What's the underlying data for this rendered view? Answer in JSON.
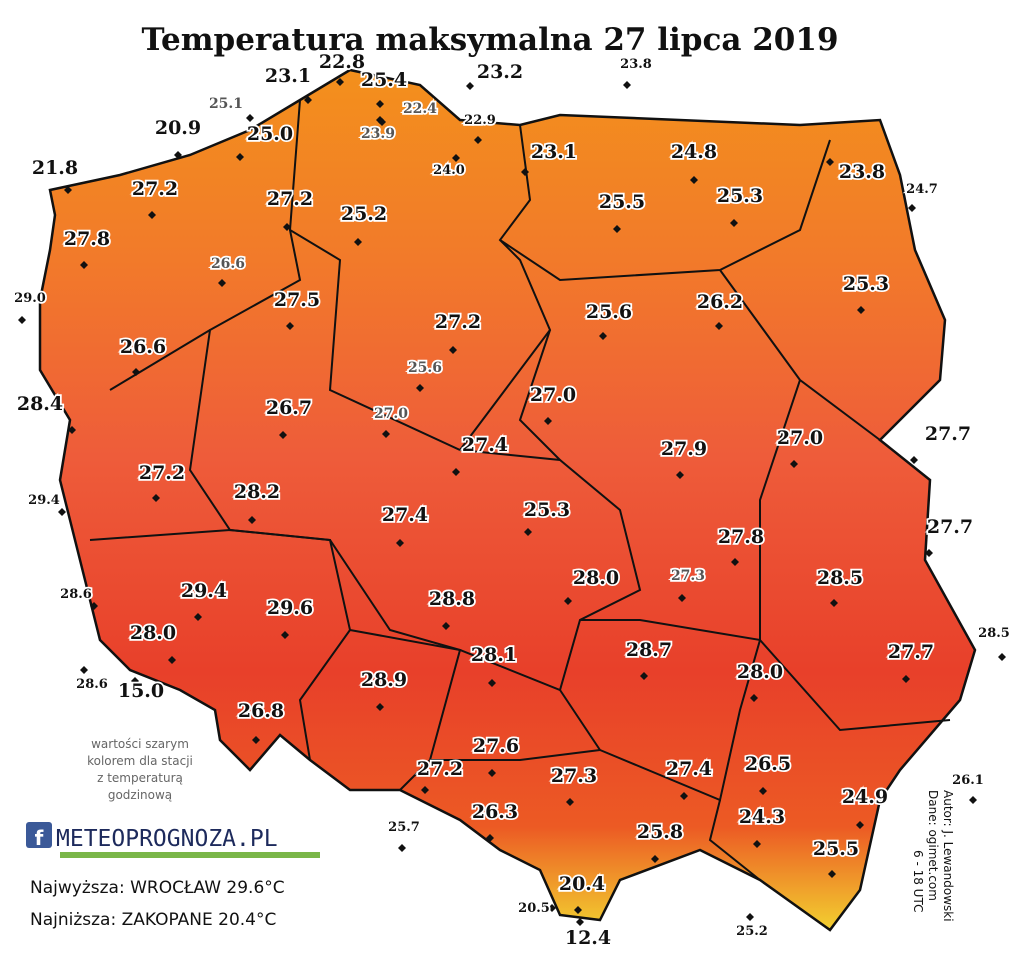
{
  "title": "Temperatura maksymalna 27 lipca 2019",
  "stations": [
    "23.8",
    "23.1",
    "22.8",
    "25.4",
    "23.2",
    "25.1",
    "22.4",
    "22.9",
    "23.9",
    "20.9",
    "25.0",
    "24.0",
    "23.1",
    "24.8",
    "23.8",
    "24.7",
    "21.8",
    "27.2",
    "27.2",
    "25.2",
    "25.5",
    "25.3",
    "27.8",
    "26.6",
    "29.0",
    "27.5",
    "27.2",
    "25.6",
    "26.2",
    "25.3",
    "26.6",
    "25.6",
    "28.4",
    "26.7",
    "27.0",
    "27.0",
    "27.9",
    "27.0",
    "27.7",
    "27.4",
    "27.2",
    "29.4",
    "28.2",
    "27.4",
    "25.3",
    "27.7",
    "27.8",
    "28.0",
    "27.3",
    "28.5",
    "28.6",
    "29.4",
    "29.6",
    "28.8",
    "28.0",
    "28.5",
    "28.7",
    "27.7",
    "28.1",
    "28.6",
    "15.0",
    "28.0",
    "28.9",
    "26.8",
    "27.6",
    "27.2",
    "27.3",
    "27.4",
    "26.5",
    "26.1",
    "24.9",
    "26.3",
    "24.3",
    "25.7",
    "25.8",
    "25.5",
    "20.4",
    "20.5",
    "12.4",
    "25.2"
  ],
  "note": [
    "wartości szarym",
    "kolorem dla stacji",
    "z temperaturą",
    "godzinową"
  ],
  "logo": "METEOPROGNOZA.PL",
  "highest": "Najwyższa: WROCŁAW 29.6°C",
  "lowest": "Najniższa: ZAKOPANE 20.4°C",
  "credits": [
    "Autor: J. Lewandowski",
    "Dane: ogimet.com",
    "6 - 18 UTC"
  ]
}
